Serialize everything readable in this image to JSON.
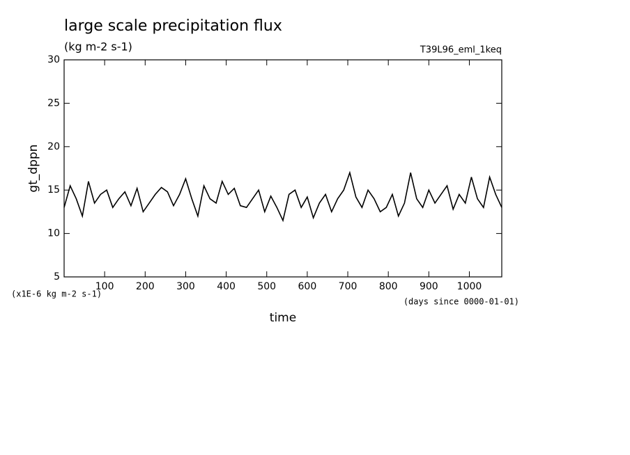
{
  "chart_data": {
    "type": "line",
    "title": "large scale precipitation flux",
    "subtitle": "(kg m-2 s-1)",
    "annotation": "T39L96_eml_1keq",
    "ylabel": "gt_dppn",
    "xlabel": "time",
    "yunit": "(x1E-6 kg m-2 s-1)",
    "xunit": "(days since 0000-01-01)",
    "color": "#000000",
    "xlim": [
      0,
      1080
    ],
    "ylim": [
      5,
      30
    ],
    "xticks": [
      100,
      200,
      300,
      400,
      500,
      600,
      700,
      800,
      900,
      1000
    ],
    "yticks": [
      5,
      10,
      15,
      20,
      25,
      30
    ],
    "x": [
      0,
      15,
      30,
      45,
      60,
      75,
      90,
      105,
      120,
      135,
      150,
      165,
      180,
      195,
      210,
      225,
      240,
      255,
      270,
      285,
      300,
      315,
      330,
      345,
      360,
      375,
      390,
      405,
      420,
      435,
      450,
      465,
      480,
      495,
      510,
      525,
      540,
      555,
      570,
      585,
      600,
      615,
      630,
      645,
      660,
      675,
      690,
      705,
      720,
      735,
      750,
      765,
      780,
      795,
      810,
      825,
      840,
      855,
      870,
      885,
      900,
      915,
      930,
      945,
      960,
      975,
      990,
      1005,
      1020,
      1035,
      1050,
      1065,
      1080
    ],
    "values": [
      13.0,
      15.5,
      14.0,
      12.0,
      16.0,
      13.5,
      14.5,
      15.0,
      13.0,
      14.0,
      14.8,
      13.2,
      15.2,
      12.5,
      13.5,
      14.5,
      15.3,
      14.8,
      13.2,
      14.5,
      16.3,
      14.0,
      12.0,
      15.5,
      14.0,
      13.5,
      16.0,
      14.5,
      15.2,
      13.2,
      13.0,
      14.0,
      15.0,
      12.5,
      14.3,
      13.0,
      11.5,
      14.5,
      15.0,
      13.0,
      14.2,
      11.8,
      13.5,
      14.5,
      12.5,
      14.0,
      15.0,
      17.0,
      14.2,
      13.0,
      15.0,
      14.0,
      12.5,
      13.0,
      14.5,
      12.0,
      13.5,
      17.0,
      14.0,
      13.0,
      15.0,
      13.5,
      14.5,
      15.5,
      12.8,
      14.5,
      13.5,
      16.5,
      14.0,
      13.0,
      16.5,
      14.5,
      13.0
    ]
  }
}
